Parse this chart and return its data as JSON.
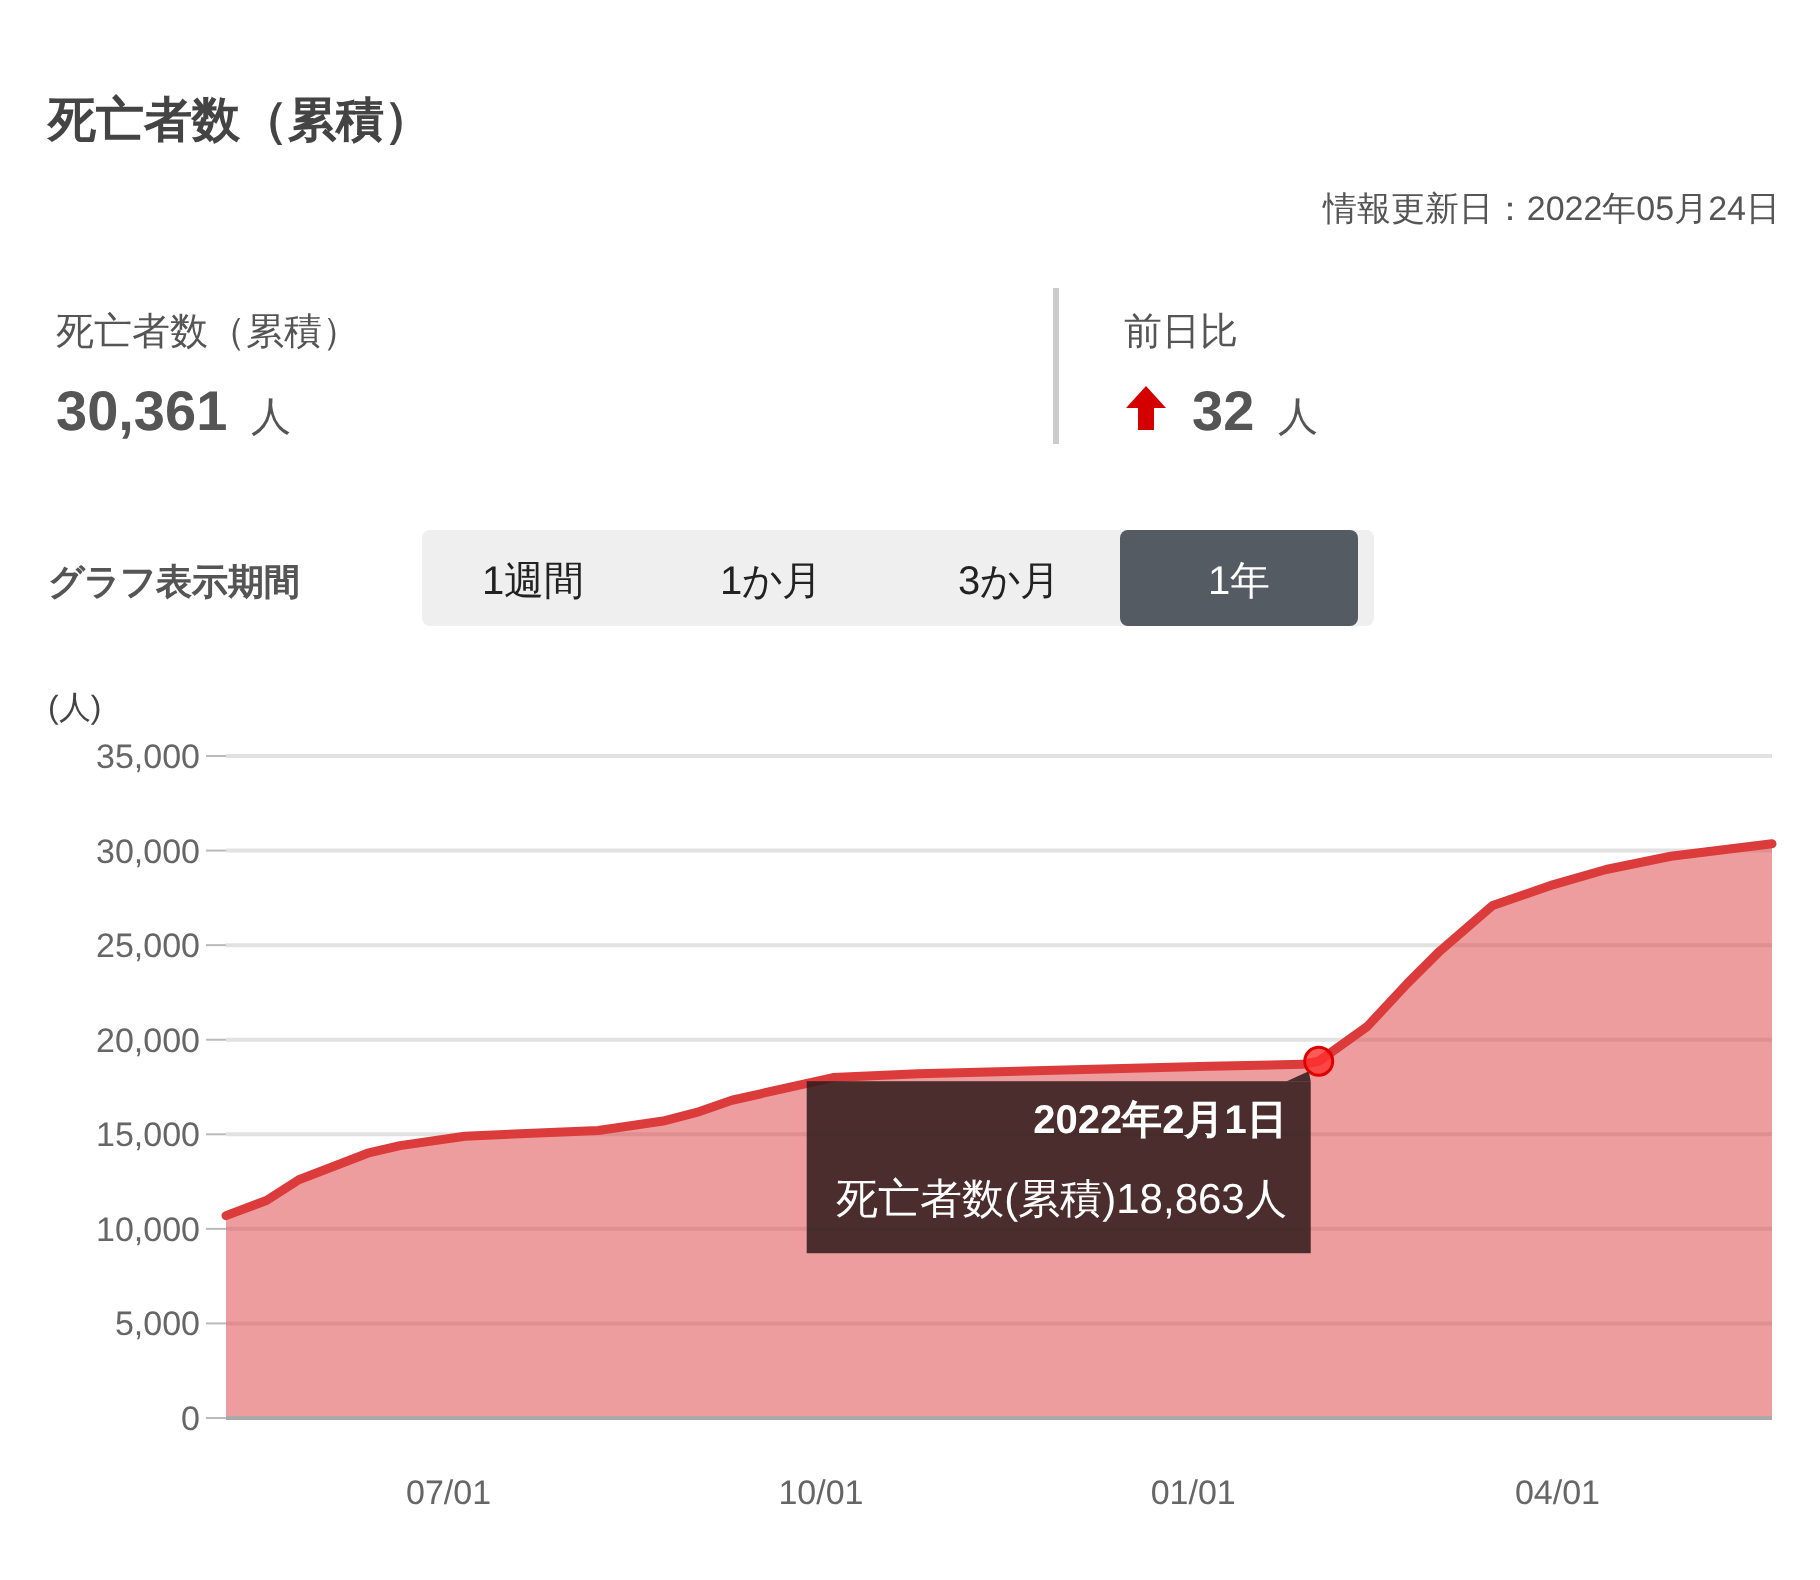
{
  "chart_data": {
    "type": "area",
    "title": "死亡者数（累積）",
    "ylabel": "(人)",
    "annotations": [
      "情報更新日：2022年05月24日",
      "死亡者数（累積）",
      "30,361 人",
      "前日比",
      "32 人",
      "グラフ表示期間",
      "1週間",
      "1か月",
      "3か月",
      "1年",
      {
        "text": "2022年2月1日",
        "x": "2022-02-01",
        "y": 18863
      },
      "死亡者数(累積)18,863人"
    ],
    "series": [
      {
        "color": "#dc3b3b",
        "x": [
          "2021-05-07",
          "2021-05-17",
          "2021-05-25",
          "2021-06-11",
          "2021-06-19",
          "2021-07-05",
          "2021-08-07",
          "2021-08-23",
          "2021-09-01",
          "2021-09-09",
          "2021-10-04",
          "2021-10-25",
          "2022-01-05",
          "2022-01-28",
          "2022-02-01",
          "2022-02-13",
          "2022-02-23",
          "2022-03-03",
          "2022-03-16",
          "2022-03-31",
          "2022-04-13",
          "2022-04-29",
          "2022-05-24"
        ],
        "values": [
          10700,
          11500,
          12600,
          14000,
          14400,
          14900,
          15200,
          15700,
          16200,
          16800,
          18000,
          18200,
          18600,
          18700,
          18863,
          20700,
          23000,
          24700,
          27100,
          28200,
          29000,
          29700,
          30361
        ]
      }
    ],
    "xlim": [
      "2021-05-07",
      "2022-05-24"
    ],
    "xticks": [
      {
        "value": "2021-07-01",
        "label": "07/01"
      },
      {
        "value": "2021-10-01",
        "label": "10/01"
      },
      {
        "value": "2022-01-01",
        "label": "01/01"
      },
      {
        "value": "2022-04-01",
        "label": "04/01"
      }
    ],
    "ylim": [
      0,
      35000
    ],
    "yticks": [
      {
        "value": 0,
        "label": "0"
      },
      {
        "value": 5000,
        "label": "5,000"
      },
      {
        "value": 10000,
        "label": "10,000"
      },
      {
        "value": 15000,
        "label": "15,000"
      },
      {
        "value": 20000,
        "label": "20,000"
      },
      {
        "value": 25000,
        "label": "25,000"
      },
      {
        "value": 30000,
        "label": "30,000"
      },
      {
        "value": 35000,
        "label": "35,000"
      }
    ],
    "grid": "y",
    "marker": "none"
  }
}
